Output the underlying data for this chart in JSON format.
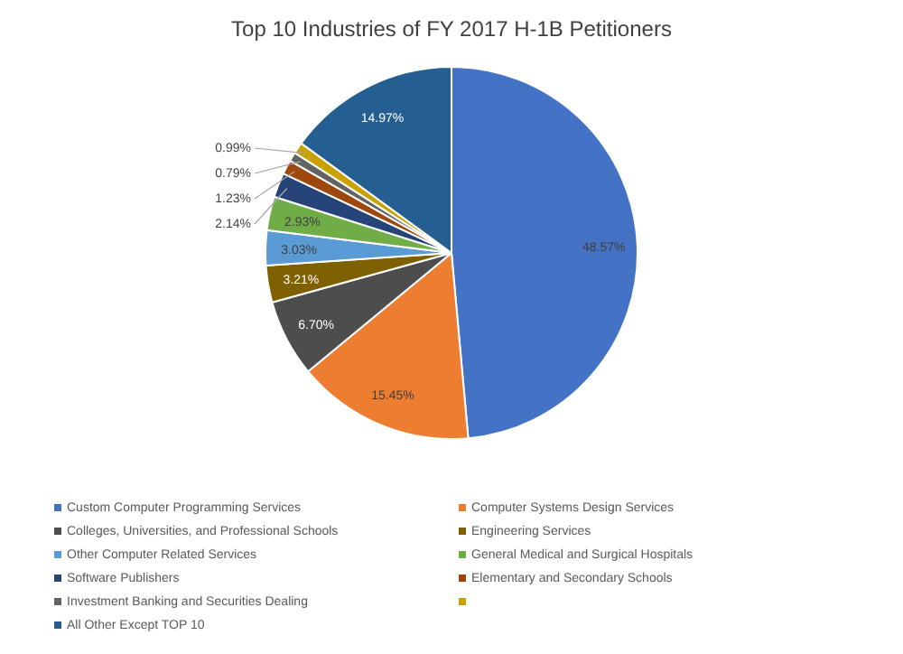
{
  "chart_data": {
    "type": "pie",
    "title": "Top 10 Industries of FY 2017 H-1B Petitioners",
    "categories": [
      "Custom Computer Programming Services",
      "Computer Systems Design Services",
      "Colleges, Universities, and Professional Schools",
      "Engineering Services",
      "Other Computer Related Services",
      "General Medical and Surgical Hospitals",
      "Software Publishers",
      "Elementary and Secondary Schools",
      "Investment Banking and Securities Dealing",
      null,
      "All Other Except TOP 10"
    ],
    "values": [
      48.57,
      15.45,
      6.7,
      3.21,
      3.03,
      2.93,
      2.14,
      1.23,
      0.79,
      0.99,
      14.97
    ],
    "value_labels": [
      "48.57%",
      "15.45%",
      "6.70%",
      "3.21%",
      "3.03%",
      "2.93%",
      "2.14%",
      "1.23%",
      "0.79%",
      "0.99%",
      "14.97%"
    ],
    "colors": [
      "#4472c4",
      "#ed7d31",
      "#4d4d4d",
      "#7f6000",
      "#5b9bd5",
      "#70ad47",
      "#264478",
      "#9e480e",
      "#636363",
      "#c9a100",
      "#255e91"
    ],
    "legend": "bottom"
  }
}
